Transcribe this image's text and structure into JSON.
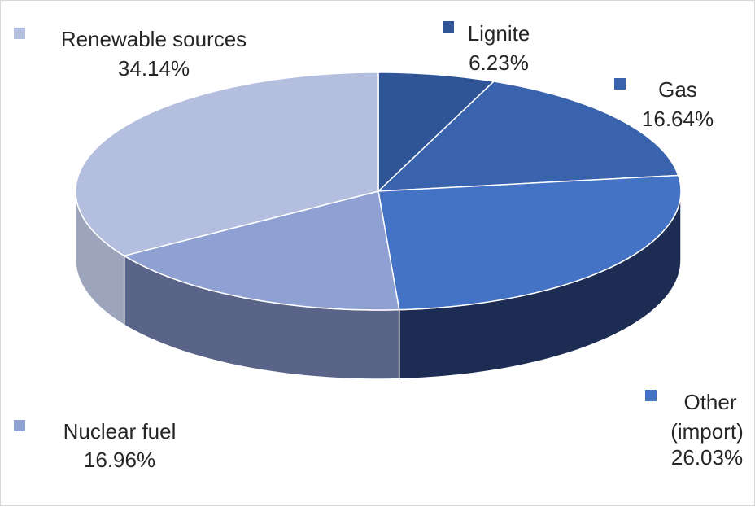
{
  "chart_data": {
    "type": "pie",
    "title": "",
    "three_d": true,
    "categories": [
      "Lignite",
      "Gas",
      "Other (import)",
      "Nuclear fuel",
      "Renewable sources"
    ],
    "values": [
      6.23,
      16.64,
      26.03,
      16.96,
      34.14
    ],
    "value_labels": [
      "6.23%",
      "16.64%",
      "26.03%",
      "16.96%",
      "34.14%"
    ],
    "colors": [
      "#2f5597",
      "#3a63ae",
      "#4472c4",
      "#8fa0d2",
      "#b4bedf"
    ],
    "side_colors": [
      "#1e3766",
      "#1e3766",
      "#1d2c52",
      "#5a6488",
      "#9da5bd"
    ],
    "label_lines": [
      [
        "Lignite",
        "6.23%"
      ],
      [
        "Gas",
        "16.64%"
      ],
      [
        "Other",
        "(import)",
        "26.03%"
      ],
      [
        "Nuclear fuel",
        "16.96%"
      ],
      [
        "Renewable sources",
        "34.14%"
      ]
    ],
    "start_angle_deg": 0,
    "direction": "clockwise",
    "legend": "labels-with-markers"
  }
}
